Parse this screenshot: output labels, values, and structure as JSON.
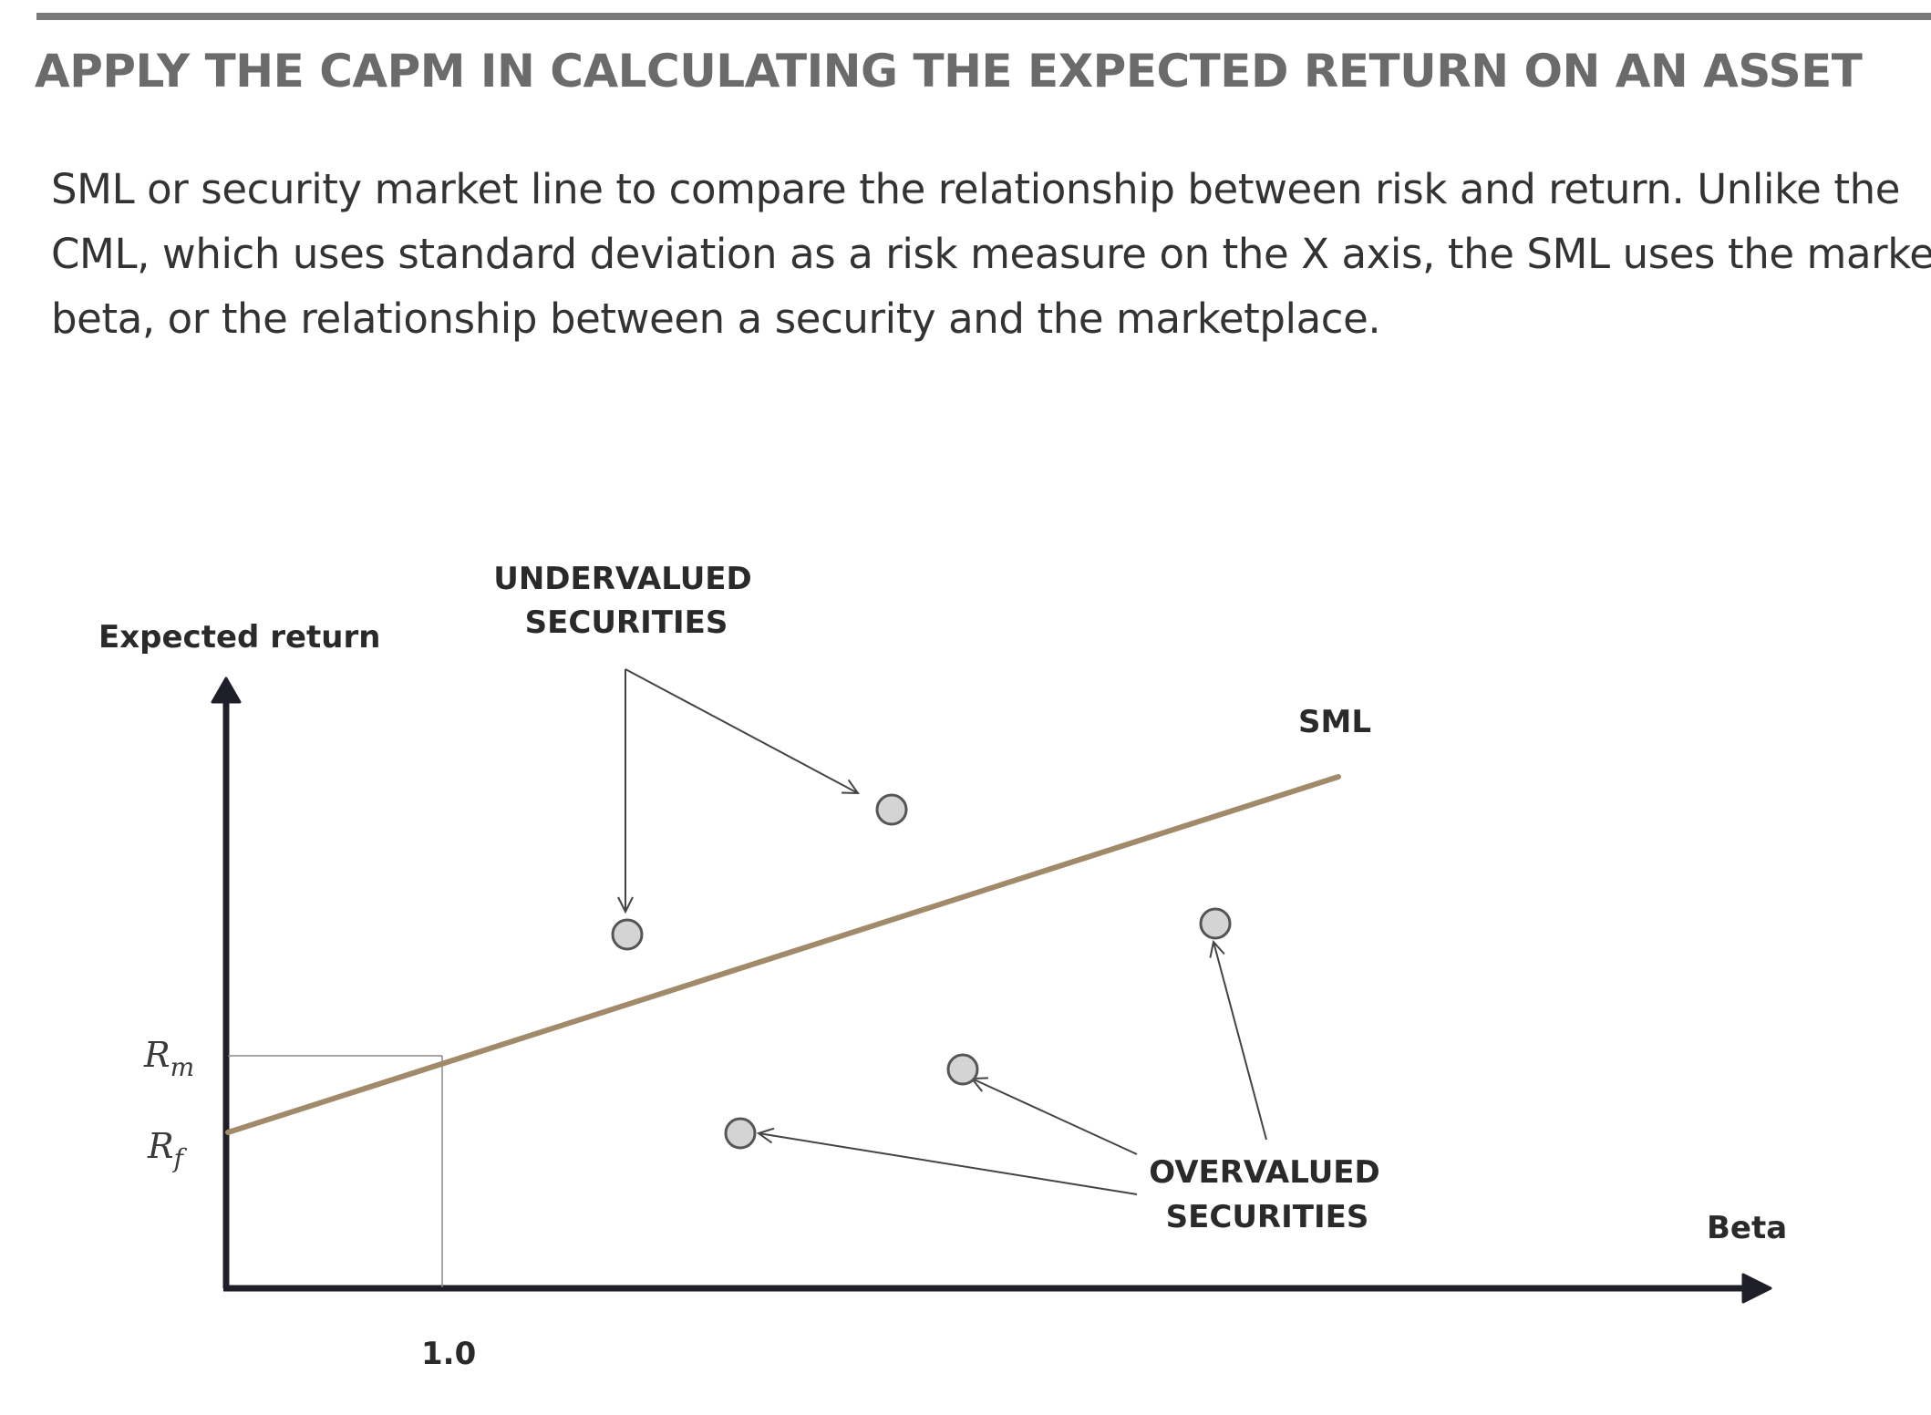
{
  "heading": "APPLY THE CAPM IN CALCULATING THE EXPECTED RETURN ON AN ASSET",
  "paragraph": {
    "line1": "SML or security market line to compare the relationship between risk and return. Unlike the",
    "line2": "CML, which uses standard deviation as a risk measure on the X axis, the SML uses the market",
    "line3": "beta, or the relationship between a security and the marketplace."
  },
  "diagram": {
    "y_axis_label": "Expected return",
    "x_axis_label": "Beta",
    "rm_symbol": "R",
    "rm_subscript": "m",
    "rf_symbol": "R",
    "rf_subscript": "f",
    "beta_tick": "1.0",
    "sml_label": "SML",
    "undervalued_line1": "UNDERVALUED",
    "undervalued_line2": "SECURITIES",
    "overvalued_line1": "OVERVALUED",
    "overvalued_line2": "SECURITIES",
    "colors": {
      "sml_line": "#a08a6a",
      "axis": "#1f1f2a",
      "security_marker_fill": "#d4d4d4",
      "security_marker_stroke": "#555555"
    }
  }
}
